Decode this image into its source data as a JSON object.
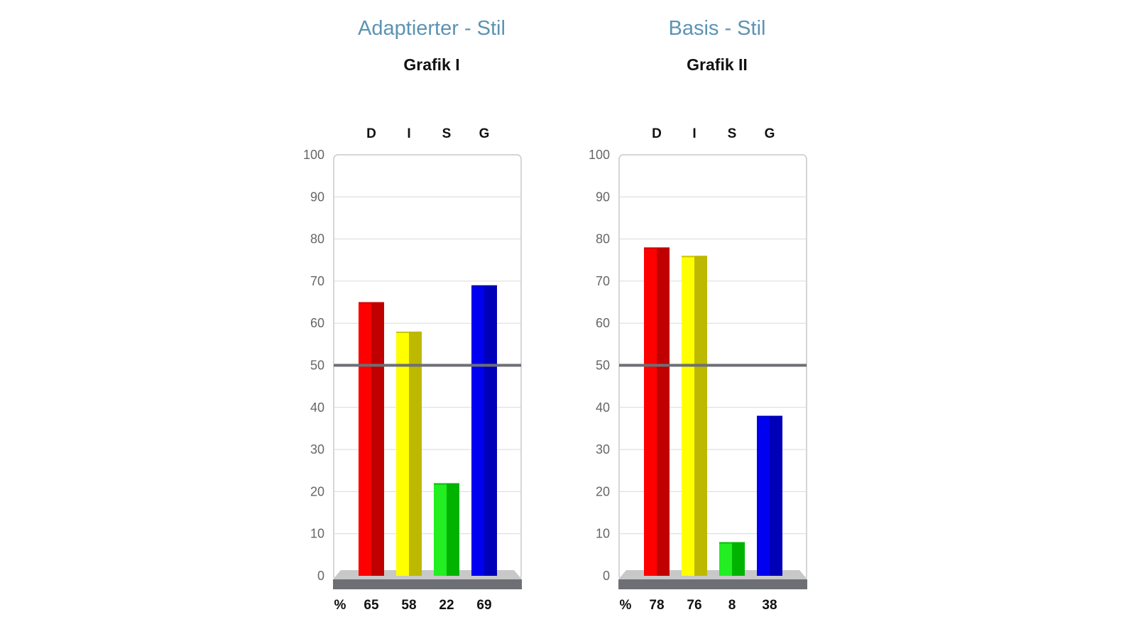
{
  "chart_data": [
    {
      "type": "bar",
      "heading": "Adaptierter - Stil",
      "title": "Grafik I",
      "categories": [
        "D",
        "I",
        "S",
        "G"
      ],
      "values": [
        65,
        58,
        22,
        69
      ],
      "value_labels": [
        "65",
        "58",
        "22",
        "69"
      ],
      "unit_label": "%",
      "yticks": [
        "100",
        "90",
        "80",
        "70",
        "60",
        "50",
        "40",
        "30",
        "20",
        "10",
        "0"
      ],
      "ylim": [
        0,
        100
      ],
      "reference_line": 50,
      "grid": true
    },
    {
      "type": "bar",
      "heading": "Basis - Stil",
      "title": "Grafik II",
      "categories": [
        "D",
        "I",
        "S",
        "G"
      ],
      "values": [
        78,
        76,
        8,
        38
      ],
      "value_labels": [
        "78",
        "76",
        "8",
        "38"
      ],
      "unit_label": "%",
      "yticks": [
        "100",
        "90",
        "80",
        "70",
        "60",
        "50",
        "40",
        "30",
        "20",
        "10",
        "0"
      ],
      "ylim": [
        0,
        100
      ],
      "reference_line": 50,
      "grid": true
    }
  ],
  "colors": {
    "D": {
      "light": "#ff0000",
      "dark": "#c00000"
    },
    "I": {
      "light": "#ffff00",
      "dark": "#bdb800"
    },
    "S": {
      "light": "#22ee22",
      "dark": "#00b300"
    },
    "G": {
      "light": "#0000f0",
      "dark": "#0000b8"
    },
    "title": "#5b93b4",
    "reference_line": "#6d6f74",
    "gridline": "#d9d9d9",
    "base": "#6d6f74"
  }
}
